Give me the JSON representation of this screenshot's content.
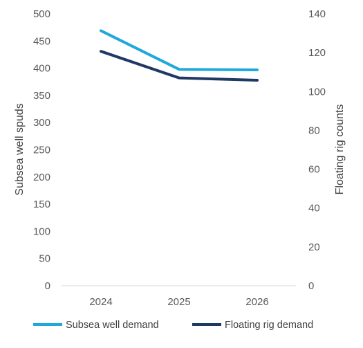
{
  "chart_data": {
    "type": "line",
    "categories": [
      "2024",
      "2025",
      "2026"
    ],
    "ylabel": "Subsea well spuds",
    "ylim": [
      0,
      500
    ],
    "yticks": [
      "0",
      "50",
      "100",
      "150",
      "200",
      "250",
      "300",
      "350",
      "400",
      "450",
      "500"
    ],
    "y2label": "Floating rig counts",
    "y2lim": [
      0,
      140
    ],
    "y2ticks": [
      "0",
      "20",
      "40",
      "60",
      "80",
      "100",
      "120",
      "140"
    ],
    "grid": false,
    "legend_position": "bottom",
    "series": [
      {
        "name": "Subsea well demand",
        "axis": "left",
        "color": "#1FA8DC",
        "values": [
          469,
          398,
          397
        ]
      },
      {
        "name": "Floating rig demand",
        "axis": "right",
        "color": "#1F3864",
        "values": [
          120.7,
          107,
          105.8
        ]
      }
    ]
  }
}
